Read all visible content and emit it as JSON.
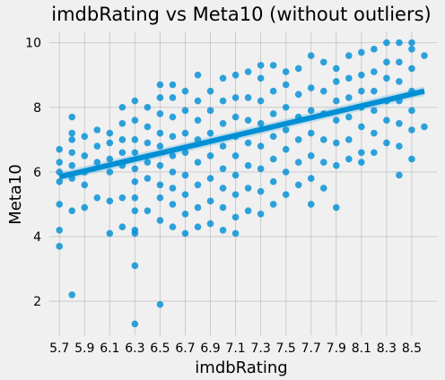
{
  "chart_data": {
    "type": "scatter",
    "title": "imdbRating vs Meta10 (without outliers)",
    "xlabel": "imdbRating",
    "ylabel": "Meta10",
    "xlim": [
      5.62,
      8.7
    ],
    "ylim": [
      0.95,
      10.35
    ],
    "xticks": [
      "5.7",
      "5.9",
      "6.1",
      "6.3",
      "6.5",
      "6.7",
      "6.9",
      "7.1",
      "7.3",
      "7.5",
      "7.7",
      "7.9",
      "8.1",
      "8.3",
      "8.5"
    ],
    "yticks": [
      "2",
      "4",
      "6",
      "8",
      "10"
    ],
    "grid": true,
    "marker_color": "#008fd5",
    "regression": {
      "x": [
        5.7,
        8.6
      ],
      "y": [
        5.85,
        8.5
      ],
      "ci_low": [
        5.7,
        8.35
      ],
      "ci_high": [
        6.0,
        8.65
      ]
    },
    "points": [
      [
        5.7,
        3.7
      ],
      [
        5.7,
        4.2
      ],
      [
        5.7,
        5.0
      ],
      [
        5.7,
        5.7
      ],
      [
        5.7,
        6.0
      ],
      [
        5.7,
        6.3
      ],
      [
        5.7,
        6.7
      ],
      [
        5.8,
        2.2
      ],
      [
        5.8,
        4.8
      ],
      [
        5.8,
        5.8
      ],
      [
        5.8,
        6.2
      ],
      [
        5.8,
        6.6
      ],
      [
        5.8,
        7.0
      ],
      [
        5.8,
        7.2
      ],
      [
        5.8,
        7.7
      ],
      [
        5.9,
        4.9
      ],
      [
        5.9,
        5.6
      ],
      [
        5.9,
        6.0
      ],
      [
        5.9,
        6.5
      ],
      [
        5.9,
        7.1
      ],
      [
        6.0,
        5.2
      ],
      [
        6.0,
        6.3
      ],
      [
        6.0,
        6.8
      ],
      [
        6.0,
        7.3
      ],
      [
        6.1,
        4.1
      ],
      [
        6.1,
        5.1
      ],
      [
        6.1,
        6.0
      ],
      [
        6.1,
        6.4
      ],
      [
        6.1,
        6.9
      ],
      [
        6.1,
        7.2
      ],
      [
        6.2,
        4.3
      ],
      [
        6.2,
        5.2
      ],
      [
        6.2,
        6.2
      ],
      [
        6.2,
        6.6
      ],
      [
        6.2,
        7.0
      ],
      [
        6.2,
        7.5
      ],
      [
        6.2,
        8.0
      ],
      [
        6.3,
        1.3
      ],
      [
        6.3,
        3.1
      ],
      [
        6.3,
        4.1
      ],
      [
        6.3,
        4.2
      ],
      [
        6.3,
        4.8
      ],
      [
        6.3,
        5.2
      ],
      [
        6.3,
        5.7
      ],
      [
        6.3,
        6.1
      ],
      [
        6.3,
        6.6
      ],
      [
        6.3,
        7.0
      ],
      [
        6.3,
        7.6
      ],
      [
        6.3,
        8.2
      ],
      [
        6.4,
        4.8
      ],
      [
        6.4,
        5.8
      ],
      [
        6.4,
        6.3
      ],
      [
        6.4,
        6.9
      ],
      [
        6.4,
        7.4
      ],
      [
        6.4,
        8.0
      ],
      [
        6.5,
        1.9
      ],
      [
        6.5,
        4.5
      ],
      [
        6.5,
        5.2
      ],
      [
        6.5,
        5.6
      ],
      [
        6.5,
        6.2
      ],
      [
        6.5,
        6.8
      ],
      [
        6.5,
        7.2
      ],
      [
        6.5,
        7.8
      ],
      [
        6.5,
        8.3
      ],
      [
        6.5,
        8.7
      ],
      [
        6.6,
        4.3
      ],
      [
        6.6,
        5.0
      ],
      [
        6.6,
        5.5
      ],
      [
        6.6,
        6.0
      ],
      [
        6.6,
        6.5
      ],
      [
        6.6,
        7.1
      ],
      [
        6.6,
        7.7
      ],
      [
        6.6,
        8.3
      ],
      [
        6.6,
        8.7
      ],
      [
        6.7,
        4.1
      ],
      [
        6.7,
        4.7
      ],
      [
        6.7,
        5.3
      ],
      [
        6.7,
        5.9
      ],
      [
        6.7,
        6.6
      ],
      [
        6.7,
        7.2
      ],
      [
        6.7,
        7.9
      ],
      [
        6.7,
        8.5
      ],
      [
        6.8,
        4.3
      ],
      [
        6.8,
        4.9
      ],
      [
        6.8,
        5.6
      ],
      [
        6.8,
        6.3
      ],
      [
        6.8,
        7.0
      ],
      [
        6.8,
        7.6
      ],
      [
        6.8,
        8.2
      ],
      [
        6.8,
        9.0
      ],
      [
        6.9,
        4.4
      ],
      [
        6.9,
        5.1
      ],
      [
        6.9,
        5.8
      ],
      [
        6.9,
        6.5
      ],
      [
        6.9,
        7.2
      ],
      [
        6.9,
        7.9
      ],
      [
        6.9,
        8.5
      ],
      [
        7.0,
        4.2
      ],
      [
        7.0,
        4.9
      ],
      [
        7.0,
        5.5
      ],
      [
        7.0,
        6.1
      ],
      [
        7.0,
        6.8
      ],
      [
        7.0,
        7.5
      ],
      [
        7.0,
        8.2
      ],
      [
        7.0,
        8.9
      ],
      [
        7.1,
        4.1
      ],
      [
        7.1,
        4.6
      ],
      [
        7.1,
        5.3
      ],
      [
        7.1,
        5.9
      ],
      [
        7.1,
        6.5
      ],
      [
        7.1,
        7.1
      ],
      [
        7.1,
        7.7
      ],
      [
        7.1,
        8.3
      ],
      [
        7.1,
        9.0
      ],
      [
        7.2,
        4.8
      ],
      [
        7.2,
        5.5
      ],
      [
        7.2,
        6.2
      ],
      [
        7.2,
        6.9
      ],
      [
        7.2,
        7.6
      ],
      [
        7.2,
        8.3
      ],
      [
        7.2,
        9.1
      ],
      [
        7.3,
        4.7
      ],
      [
        7.3,
        5.4
      ],
      [
        7.3,
        6.1
      ],
      [
        7.3,
        6.8
      ],
      [
        7.3,
        7.5
      ],
      [
        7.3,
        8.2
      ],
      [
        7.3,
        8.9
      ],
      [
        7.3,
        9.3
      ],
      [
        7.4,
        5.0
      ],
      [
        7.4,
        5.7
      ],
      [
        7.4,
        6.4
      ],
      [
        7.4,
        7.1
      ],
      [
        7.4,
        7.8
      ],
      [
        7.4,
        8.5
      ],
      [
        7.4,
        9.3
      ],
      [
        7.5,
        5.3
      ],
      [
        7.5,
        6.0
      ],
      [
        7.5,
        6.7
      ],
      [
        7.5,
        7.3
      ],
      [
        7.5,
        8.0
      ],
      [
        7.5,
        8.7
      ],
      [
        7.5,
        9.1
      ],
      [
        7.6,
        5.6
      ],
      [
        7.6,
        6.3
      ],
      [
        7.6,
        7.0
      ],
      [
        7.6,
        7.7
      ],
      [
        7.6,
        8.4
      ],
      [
        7.6,
        9.2
      ],
      [
        7.7,
        5.0
      ],
      [
        7.7,
        5.8
      ],
      [
        7.7,
        6.5
      ],
      [
        7.7,
        7.2
      ],
      [
        7.7,
        7.9
      ],
      [
        7.7,
        8.6
      ],
      [
        7.7,
        9.6
      ],
      [
        7.8,
        5.5
      ],
      [
        7.8,
        6.3
      ],
      [
        7.8,
        7.0
      ],
      [
        7.8,
        7.8
      ],
      [
        7.8,
        8.5
      ],
      [
        7.8,
        9.4
      ],
      [
        7.9,
        4.9
      ],
      [
        7.9,
        6.2
      ],
      [
        7.9,
        6.9
      ],
      [
        7.9,
        7.6
      ],
      [
        7.9,
        8.2
      ],
      [
        7.9,
        8.8
      ],
      [
        7.9,
        9.2
      ],
      [
        8.0,
        6.4
      ],
      [
        8.0,
        7.0
      ],
      [
        8.0,
        7.7
      ],
      [
        8.0,
        8.3
      ],
      [
        8.0,
        8.9
      ],
      [
        8.0,
        9.6
      ],
      [
        8.1,
        6.3
      ],
      [
        8.1,
        6.6
      ],
      [
        8.1,
        7.4
      ],
      [
        8.1,
        8.0
      ],
      [
        8.1,
        8.5
      ],
      [
        8.1,
        9.0
      ],
      [
        8.1,
        9.7
      ],
      [
        8.2,
        6.6
      ],
      [
        8.2,
        7.2
      ],
      [
        8.2,
        7.9
      ],
      [
        8.2,
        8.5
      ],
      [
        8.2,
        9.1
      ],
      [
        8.2,
        9.8
      ],
      [
        8.3,
        6.9
      ],
      [
        8.3,
        7.6
      ],
      [
        8.3,
        8.2
      ],
      [
        8.3,
        8.9
      ],
      [
        8.3,
        9.4
      ],
      [
        8.3,
        10.0
      ],
      [
        8.4,
        5.9
      ],
      [
        8.4,
        6.8
      ],
      [
        8.4,
        7.5
      ],
      [
        8.4,
        8.2
      ],
      [
        8.4,
        8.8
      ],
      [
        8.4,
        9.4
      ],
      [
        8.4,
        10.0
      ],
      [
        8.5,
        6.4
      ],
      [
        8.5,
        7.3
      ],
      [
        8.5,
        7.9
      ],
      [
        8.5,
        8.5
      ],
      [
        8.5,
        9.2
      ],
      [
        8.5,
        9.8
      ],
      [
        8.5,
        10.0
      ],
      [
        8.6,
        7.4
      ],
      [
        8.6,
        9.6
      ]
    ]
  }
}
